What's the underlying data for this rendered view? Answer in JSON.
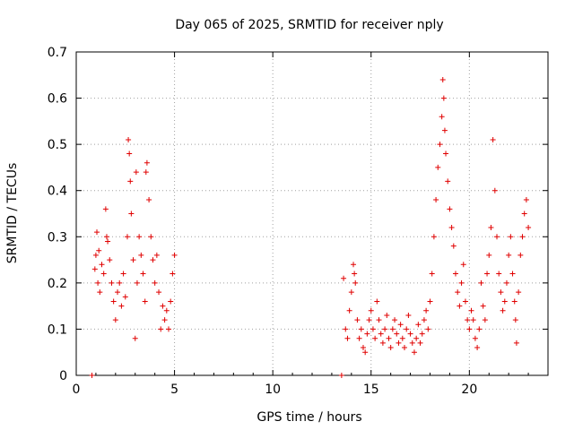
{
  "chart_data": {
    "type": "scatter",
    "title": "Day 065 of 2025, SRMTID for receiver nply",
    "xlabel": "GPS time / hours",
    "ylabel": "SRMTID / TECUs",
    "xlim": [
      0,
      24
    ],
    "ylim": [
      0,
      0.7
    ],
    "xticks": [
      0,
      5,
      10,
      15,
      20
    ],
    "xtick_labels": [
      "0",
      "5",
      "10",
      "15",
      "20"
    ],
    "yticks": [
      0,
      0.1,
      0.2,
      0.3,
      0.4,
      0.5,
      0.6,
      0.7
    ],
    "ytick_labels": [
      "0",
      "0.1",
      "0.2",
      "0.3",
      "0.4",
      "0.5",
      "0.6",
      "0.7"
    ],
    "grid": true,
    "marker": "+",
    "color": "#e00000",
    "series": [
      {
        "name": "SRMTID",
        "points": [
          [
            0.8,
            0.0
          ],
          [
            0.95,
            0.23
          ],
          [
            1.0,
            0.26
          ],
          [
            1.05,
            0.31
          ],
          [
            1.1,
            0.2
          ],
          [
            1.15,
            0.27
          ],
          [
            1.2,
            0.18
          ],
          [
            1.3,
            0.24
          ],
          [
            1.4,
            0.22
          ],
          [
            1.5,
            0.36
          ],
          [
            1.55,
            0.3
          ],
          [
            1.6,
            0.29
          ],
          [
            1.7,
            0.25
          ],
          [
            1.8,
            0.2
          ],
          [
            1.9,
            0.16
          ],
          [
            2.0,
            0.12
          ],
          [
            2.1,
            0.18
          ],
          [
            2.2,
            0.2
          ],
          [
            2.3,
            0.15
          ],
          [
            2.4,
            0.22
          ],
          [
            2.5,
            0.17
          ],
          [
            2.6,
            0.3
          ],
          [
            2.65,
            0.51
          ],
          [
            2.7,
            0.48
          ],
          [
            2.75,
            0.42
          ],
          [
            2.8,
            0.35
          ],
          [
            2.9,
            0.25
          ],
          [
            3.0,
            0.08
          ],
          [
            3.05,
            0.44
          ],
          [
            3.1,
            0.2
          ],
          [
            3.2,
            0.3
          ],
          [
            3.3,
            0.26
          ],
          [
            3.4,
            0.22
          ],
          [
            3.5,
            0.16
          ],
          [
            3.55,
            0.44
          ],
          [
            3.6,
            0.46
          ],
          [
            3.7,
            0.38
          ],
          [
            3.8,
            0.3
          ],
          [
            3.9,
            0.25
          ],
          [
            4.0,
            0.2
          ],
          [
            4.1,
            0.26
          ],
          [
            4.2,
            0.18
          ],
          [
            4.3,
            0.1
          ],
          [
            4.4,
            0.15
          ],
          [
            4.5,
            0.12
          ],
          [
            4.6,
            0.14
          ],
          [
            4.7,
            0.1
          ],
          [
            4.8,
            0.16
          ],
          [
            4.9,
            0.22
          ],
          [
            5.0,
            0.26
          ],
          [
            13.5,
            0.0
          ],
          [
            13.6,
            0.21
          ],
          [
            13.7,
            0.1
          ],
          [
            13.8,
            0.08
          ],
          [
            13.9,
            0.14
          ],
          [
            14.0,
            0.18
          ],
          [
            14.1,
            0.24
          ],
          [
            14.15,
            0.22
          ],
          [
            14.2,
            0.2
          ],
          [
            14.3,
            0.12
          ],
          [
            14.4,
            0.08
          ],
          [
            14.5,
            0.1
          ],
          [
            14.6,
            0.06
          ],
          [
            14.7,
            0.05
          ],
          [
            14.8,
            0.09
          ],
          [
            14.9,
            0.12
          ],
          [
            15.0,
            0.14
          ],
          [
            15.1,
            0.1
          ],
          [
            15.2,
            0.08
          ],
          [
            15.3,
            0.16
          ],
          [
            15.4,
            0.12
          ],
          [
            15.5,
            0.09
          ],
          [
            15.6,
            0.07
          ],
          [
            15.7,
            0.1
          ],
          [
            15.8,
            0.13
          ],
          [
            15.9,
            0.08
          ],
          [
            16.0,
            0.06
          ],
          [
            16.1,
            0.1
          ],
          [
            16.2,
            0.12
          ],
          [
            16.3,
            0.09
          ],
          [
            16.4,
            0.07
          ],
          [
            16.5,
            0.11
          ],
          [
            16.6,
            0.08
          ],
          [
            16.7,
            0.06
          ],
          [
            16.8,
            0.1
          ],
          [
            16.9,
            0.13
          ],
          [
            17.0,
            0.09
          ],
          [
            17.1,
            0.07
          ],
          [
            17.2,
            0.05
          ],
          [
            17.3,
            0.08
          ],
          [
            17.4,
            0.11
          ],
          [
            17.5,
            0.07
          ],
          [
            17.6,
            0.09
          ],
          [
            17.7,
            0.12
          ],
          [
            17.8,
            0.14
          ],
          [
            17.9,
            0.1
          ],
          [
            18.0,
            0.16
          ],
          [
            18.1,
            0.22
          ],
          [
            18.2,
            0.3
          ],
          [
            18.3,
            0.38
          ],
          [
            18.4,
            0.45
          ],
          [
            18.5,
            0.5
          ],
          [
            18.6,
            0.56
          ],
          [
            18.65,
            0.64
          ],
          [
            18.7,
            0.6
          ],
          [
            18.75,
            0.53
          ],
          [
            18.8,
            0.48
          ],
          [
            18.9,
            0.42
          ],
          [
            19.0,
            0.36
          ],
          [
            19.1,
            0.32
          ],
          [
            19.2,
            0.28
          ],
          [
            19.3,
            0.22
          ],
          [
            19.4,
            0.18
          ],
          [
            19.5,
            0.15
          ],
          [
            19.6,
            0.2
          ],
          [
            19.7,
            0.24
          ],
          [
            19.8,
            0.16
          ],
          [
            19.9,
            0.12
          ],
          [
            20.0,
            0.1
          ],
          [
            20.1,
            0.14
          ],
          [
            20.2,
            0.12
          ],
          [
            20.3,
            0.08
          ],
          [
            20.4,
            0.06
          ],
          [
            20.5,
            0.1
          ],
          [
            20.6,
            0.2
          ],
          [
            20.7,
            0.15
          ],
          [
            20.8,
            0.12
          ],
          [
            20.9,
            0.22
          ],
          [
            21.0,
            0.26
          ],
          [
            21.1,
            0.32
          ],
          [
            21.2,
            0.51
          ],
          [
            21.3,
            0.4
          ],
          [
            21.4,
            0.3
          ],
          [
            21.5,
            0.22
          ],
          [
            21.6,
            0.18
          ],
          [
            21.7,
            0.14
          ],
          [
            21.8,
            0.16
          ],
          [
            21.9,
            0.2
          ],
          [
            22.0,
            0.26
          ],
          [
            22.1,
            0.3
          ],
          [
            22.2,
            0.22
          ],
          [
            22.3,
            0.16
          ],
          [
            22.35,
            0.12
          ],
          [
            22.4,
            0.07
          ],
          [
            22.5,
            0.18
          ],
          [
            22.6,
            0.26
          ],
          [
            22.7,
            0.3
          ],
          [
            22.8,
            0.35
          ],
          [
            22.9,
            0.38
          ],
          [
            23.0,
            0.32
          ]
        ]
      }
    ]
  }
}
